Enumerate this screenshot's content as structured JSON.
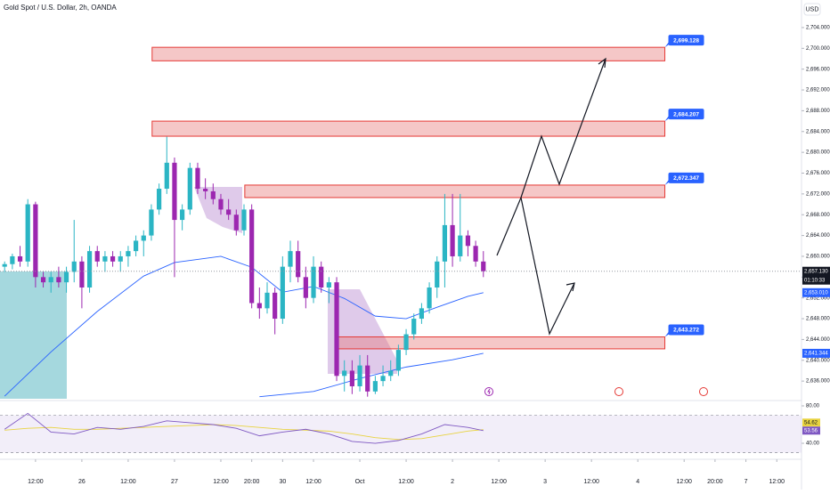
{
  "chart_data": {
    "type": "candlestick",
    "title": "Gold Spot / U.S. Dollar, 2h, OANDA",
    "currency": "USD",
    "countdown": "01:10:33",
    "up_color": "#2bb5c4",
    "down_color": "#9c27b0",
    "x": [
      -10,
      -9,
      -8,
      -7,
      -6,
      -5,
      -4,
      -3,
      -2,
      -1,
      0,
      1,
      2,
      3,
      4,
      5,
      6,
      7,
      8,
      9,
      10,
      11,
      12,
      13,
      14,
      15,
      16,
      17,
      18,
      19,
      20,
      21,
      22,
      23,
      24,
      25,
      26,
      27,
      28,
      29,
      30,
      31,
      32,
      33,
      34,
      35,
      36,
      37,
      38,
      39,
      40,
      41,
      42,
      43,
      44,
      45,
      46,
      47,
      48,
      49,
      50,
      51,
      52
    ],
    "open": [
      2658,
      2658.5,
      2660,
      2659,
      2670,
      2656,
      2655,
      2656,
      2655,
      2657,
      2659,
      2654,
      2661,
      2659,
      2660,
      2659,
      2660,
      2661,
      2663,
      2664,
      2669,
      2673,
      2678,
      2667,
      2669,
      2677,
      2673,
      2672.5,
      2671,
      2669,
      2668,
      2665,
      2669,
      2651,
      2650,
      2653,
      2648,
      2658,
      2661,
      2656,
      2652,
      2658,
      2654,
      2655,
      2637,
      2638,
      2635,
      2639,
      2634,
      2636,
      2637,
      2638,
      2642,
      2645,
      2648,
      2650,
      2654,
      2659,
      2666,
      2660,
      2664,
      2662,
      2659
    ],
    "high": [
      2659,
      2660.5,
      2662,
      2671,
      2670.5,
      2657,
      2657,
      2658,
      2658,
      2667,
      2660,
      2662,
      2662,
      2661,
      2661,
      2661,
      2662,
      2664,
      2665,
      2670,
      2674,
      2683,
      2679,
      2670,
      2678,
      2678,
      2675,
      2674,
      2672,
      2671,
      2669,
      2670,
      2670,
      2654,
      2655,
      2654,
      2660,
      2663,
      2663,
      2658,
      2660,
      2659,
      2656,
      2656,
      2640,
      2640,
      2641,
      2641,
      2637,
      2639,
      2640,
      2643,
      2646,
      2649,
      2651,
      2655,
      2660,
      2672,
      2672,
      2672,
      2665,
      2663,
      2661
    ],
    "low": [
      2657,
      2657.5,
      2658,
      2658,
      2654,
      2654,
      2653,
      2654,
      2653,
      2655,
      2650,
      2653,
      2658,
      2657,
      2658,
      2657,
      2658,
      2660,
      2660,
      2663,
      2668,
      2672,
      2656,
      2665,
      2668,
      2672,
      2671,
      2670,
      2668,
      2667,
      2664,
      2664,
      2650,
      2648,
      2649,
      2645,
      2647,
      2655,
      2655,
      2650,
      2651,
      2653,
      2651,
      2636,
      2634,
      2633.5,
      2634,
      2633,
      2633.5,
      2635,
      2636,
      2637,
      2641,
      2644,
      2647,
      2649,
      2652,
      2654,
      2658,
      2659,
      2660,
      2658,
      2656
    ],
    "close": [
      2658.5,
      2660,
      2659,
      2670,
      2656,
      2655,
      2656,
      2655,
      2657,
      2659,
      2654,
      2661,
      2659,
      2660,
      2659,
      2660,
      2661,
      2663,
      2664,
      2669,
      2673,
      2678,
      2667,
      2669,
      2677,
      2673,
      2672.5,
      2671,
      2669,
      2668,
      2665,
      2669,
      2651,
      2650,
      2653,
      2648,
      2658,
      2661,
      2656,
      2652,
      2658,
      2654,
      2655,
      2637,
      2638,
      2635,
      2639,
      2634,
      2636,
      2637,
      2638,
      2642,
      2645,
      2648,
      2650,
      2654,
      2659,
      2666,
      2660,
      2664,
      2662,
      2659,
      2657.13
    ],
    "xlim": [
      -10.6,
      93.2
    ],
    "xticks": [
      {
        "value": -6,
        "label": "12:00"
      },
      {
        "value": 0,
        "label": "26"
      },
      {
        "value": 6,
        "label": "12:00"
      },
      {
        "value": 12,
        "label": "27"
      },
      {
        "value": 18,
        "label": "12:00"
      },
      {
        "value": 22,
        "label": "20:00"
      },
      {
        "value": 26,
        "label": "30"
      },
      {
        "value": 30,
        "label": "12:00"
      },
      {
        "value": 36,
        "label": "Oct"
      },
      {
        "value": 42,
        "label": "12:00"
      },
      {
        "value": 48,
        "label": "2"
      },
      {
        "value": 54,
        "label": "12:00"
      },
      {
        "value": 60,
        "label": "3"
      },
      {
        "value": 66,
        "label": "12:00"
      },
      {
        "value": 72,
        "label": "4"
      },
      {
        "value": 78,
        "label": "12:00"
      },
      {
        "value": 82,
        "label": "20:00"
      },
      {
        "value": 86,
        "label": "7"
      },
      {
        "value": 90,
        "label": "12:00"
      }
    ],
    "ylim": [
      2632.6,
      2709.3
    ],
    "yticks": [
      {
        "value": 2636,
        "label": "2,636.000"
      },
      {
        "value": 2640,
        "label": "2,640.000"
      },
      {
        "value": 2644,
        "label": "2,644.000"
      },
      {
        "value": 2648,
        "label": "2,648.000"
      },
      {
        "value": 2652,
        "label": "2,652.000"
      },
      {
        "value": 2656,
        "label": "2,656.000"
      },
      {
        "value": 2660,
        "label": "2,660.000"
      },
      {
        "value": 2664,
        "label": "2,664.000"
      },
      {
        "value": 2668,
        "label": "2,668.000"
      },
      {
        "value": 2672,
        "label": "2,672.000"
      },
      {
        "value": 2676,
        "label": "2,676.000"
      },
      {
        "value": 2680,
        "label": "2,680.000"
      },
      {
        "value": 2684,
        "label": "2,684.000"
      },
      {
        "value": 2688,
        "label": "2,688.000"
      },
      {
        "value": 2692,
        "label": "2,692.000"
      },
      {
        "value": 2696,
        "label": "2,696.000"
      },
      {
        "value": 2700,
        "label": "2,700.000"
      },
      {
        "value": 2704,
        "label": "2,704.000"
      }
    ],
    "price_labels": [
      {
        "value": 2657.13,
        "label": "2,657.130",
        "color": "#131722"
      },
      {
        "value": 2653.01,
        "label": "2,653.010",
        "color": "#2962ff"
      },
      {
        "value": 2641.344,
        "label": "2,641.344",
        "color": "#2962ff"
      }
    ],
    "moving_averages": [
      {
        "color": "#2962ff",
        "x": [
          -10,
          -4,
          2,
          8,
          12,
          18,
          22,
          26,
          30,
          34,
          38,
          42,
          46,
          50,
          52
        ],
        "values": [
          2633.1,
          2641.6,
          2649.4,
          2656.2,
          2658.8,
          2660,
          2657.9,
          2653.1,
          2654.2,
          2651.9,
          2648.5,
          2648,
          2650.2,
          2652.3,
          2653.01
        ]
      },
      {
        "color": "#2962ff",
        "x": [
          23,
          30,
          36,
          42,
          48,
          52
        ],
        "values": [
          2633,
          2634,
          2636.5,
          2638.7,
          2640.1,
          2641.344
        ]
      }
    ],
    "zones": [
      {
        "low": 2697.6,
        "high": 2700.2,
        "x_start": 9.1,
        "x_end": 75.5,
        "label": "2,699.128"
      },
      {
        "low": 2683.1,
        "high": 2686.0,
        "x_start": 9.1,
        "x_end": 75.5,
        "label": "2,684.207"
      },
      {
        "low": 2671.3,
        "high": 2673.7,
        "x_start": 21.1,
        "x_end": 75.5,
        "label": "2,672.347"
      },
      {
        "low": 2642.2,
        "high": 2644.5,
        "x_start": 32.9,
        "x_end": 75.5,
        "label": "2,643.272"
      }
    ],
    "rsi": {
      "ylim": [
        26.7,
        83.8
      ],
      "yticks": [
        {
          "value": 80,
          "label": "80.00"
        },
        {
          "value": 40,
          "label": "40.00"
        }
      ],
      "band": [
        30,
        70
      ],
      "x": [
        -10,
        -7,
        -4,
        -1,
        2,
        5,
        8,
        11,
        14,
        17,
        20,
        23,
        26,
        29,
        32,
        35,
        38,
        41,
        44,
        47,
        50,
        52
      ],
      "values": [
        55,
        72,
        52,
        50,
        57,
        55,
        58,
        64,
        62,
        60,
        56,
        48,
        52,
        55,
        50,
        42,
        40,
        43,
        50,
        60,
        57,
        53.56
      ],
      "ma_values": [
        54,
        56,
        57,
        55,
        55,
        56,
        57,
        58,
        59,
        60,
        59,
        57,
        55,
        54,
        53,
        50,
        46,
        44,
        45,
        49,
        53,
        54.62
      ],
      "color": "#7e57c2",
      "ma_color": "#e8d33f",
      "value_labels": [
        "53.56"
      ],
      "ma_value_labels": [
        "54.62"
      ]
    }
  }
}
